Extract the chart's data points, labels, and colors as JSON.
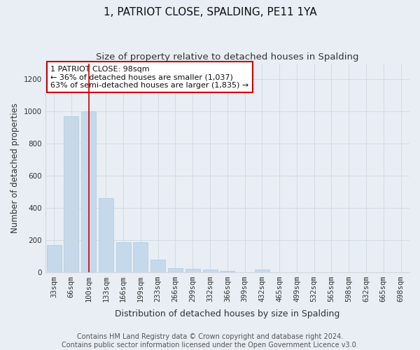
{
  "title": "1, PATRIOT CLOSE, SPALDING, PE11 1YA",
  "subtitle": "Size of property relative to detached houses in Spalding",
  "xlabel": "Distribution of detached houses by size in Spalding",
  "ylabel": "Number of detached properties",
  "categories": [
    "33sqm",
    "66sqm",
    "100sqm",
    "133sqm",
    "166sqm",
    "199sqm",
    "233sqm",
    "266sqm",
    "299sqm",
    "332sqm",
    "366sqm",
    "399sqm",
    "432sqm",
    "465sqm",
    "499sqm",
    "532sqm",
    "565sqm",
    "598sqm",
    "632sqm",
    "665sqm",
    "698sqm"
  ],
  "values": [
    170,
    970,
    1000,
    460,
    185,
    185,
    75,
    25,
    20,
    15,
    8,
    0,
    15,
    0,
    0,
    0,
    0,
    0,
    0,
    0,
    0
  ],
  "bar_color": "#c5d9ea",
  "bar_edge_color": "#b0cce0",
  "grid_color": "#d0d8e0",
  "bg_color": "#e8eef4",
  "plot_bg_color": "#e8eef4",
  "red_line_x": 2,
  "annotation_title": "1 PATRIOT CLOSE: 98sqm",
  "annotation_line1": "← 36% of detached houses are smaller (1,037)",
  "annotation_line2": "63% of semi-detached houses are larger (1,835) →",
  "annotation_box_color": "#ffffff",
  "annotation_border_color": "#cc0000",
  "footer_line1": "Contains HM Land Registry data © Crown copyright and database right 2024.",
  "footer_line2": "Contains public sector information licensed under the Open Government Licence v3.0.",
  "ylim": [
    0,
    1300
  ],
  "yticks": [
    0,
    200,
    400,
    600,
    800,
    1000,
    1200
  ],
  "title_fontsize": 11,
  "subtitle_fontsize": 9.5,
  "ylabel_fontsize": 8.5,
  "xlabel_fontsize": 9,
  "tick_fontsize": 7.5,
  "annotation_fontsize": 8,
  "footer_fontsize": 7
}
